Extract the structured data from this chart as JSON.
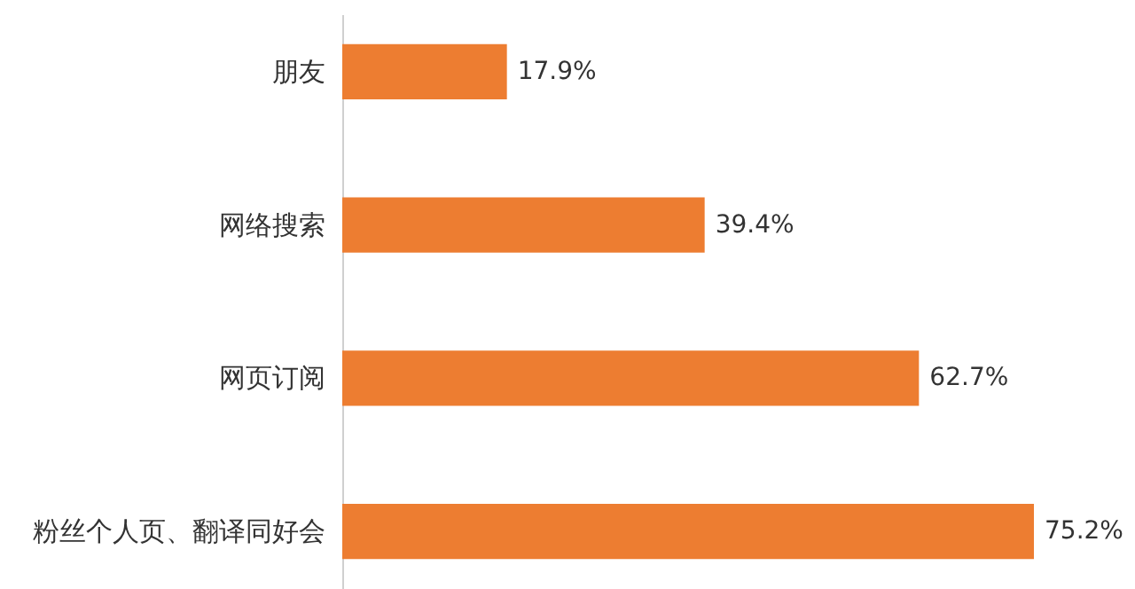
{
  "chart_data": {
    "type": "bar",
    "orientation": "horizontal",
    "categories": [
      "朋友",
      "网络搜索",
      "网页订阅",
      "粉丝个人页、翻译同好会"
    ],
    "values": [
      17.9,
      39.4,
      62.7,
      75.2
    ],
    "value_labels": [
      "17.9%",
      "39.4%",
      "62.7%",
      "75.2%"
    ],
    "color": "#ed7d31"
  }
}
